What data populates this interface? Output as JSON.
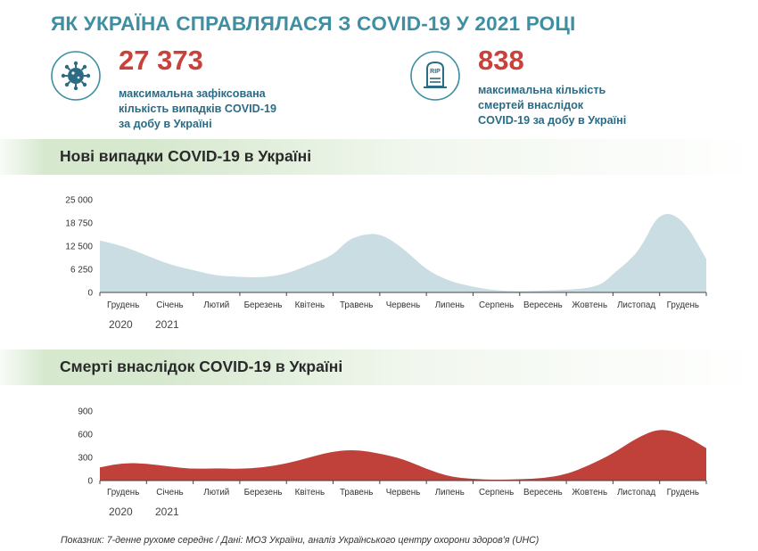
{
  "title": "ЯК УКРАЇНА СПРАВЛЯЛАСЯ З COVID-19 У 2021 РОЦІ",
  "stats": {
    "cases": {
      "icon": "virus-icon",
      "value": "27 373",
      "desc": [
        "максимальна зафіксована",
        "кількість випадків COVID-19",
        "за добу в Україні"
      ]
    },
    "deaths": {
      "icon": "tombstone-rip-icon",
      "icon_text": "RIP",
      "value": "838",
      "desc": [
        "максимальна кількість",
        "смертей внаслідок",
        "COVID-19 за добу в Україні"
      ]
    }
  },
  "colors": {
    "title": "#3f8fa3",
    "stat_number": "#c8413a",
    "stat_text": "#2c6b84",
    "cases_area": "#c9dde2",
    "deaths_area": "#c0403a",
    "band": "#d6e8ce"
  },
  "year_labels": [
    "2020",
    "2021"
  ],
  "footer": "Показник: 7-денне рухоме середнє / Дані: МОЗ України, аналіз Українського центру охорони здоров'я (UHC)",
  "chart_data": [
    {
      "type": "area",
      "title": "Нові випадки COVID-19 в Україні",
      "yticks": [
        "0",
        "6 250",
        "12 500",
        "18 750",
        "25 000"
      ],
      "ylim": [
        0,
        25000
      ],
      "xticks": [
        "Грудень",
        "Січень",
        "Лютий",
        "Березень",
        "Квітень",
        "Травень",
        "Червень",
        "Липень",
        "Серпень",
        "Вересень",
        "Жовтень",
        "Листопад",
        "Грудень"
      ],
      "x_month": [
        0,
        0.5,
        1,
        1.5,
        2,
        2.5,
        3,
        3.5,
        4,
        4.5,
        5,
        5.3,
        5.6,
        6,
        6.5,
        7,
        7.5,
        8,
        8.5,
        9,
        9.5,
        10,
        10.5,
        10.8,
        11,
        11.3,
        11.6,
        12,
        12.5,
        13
      ],
      "values": [
        14000,
        12500,
        10000,
        7500,
        6000,
        4500,
        4200,
        4000,
        5000,
        7500,
        10000,
        14000,
        15500,
        16000,
        12000,
        6000,
        3000,
        1500,
        500,
        300,
        500,
        700,
        1200,
        2500,
        5000,
        8000,
        12000,
        22000,
        20000,
        9000
      ],
      "color": "#c9dde2"
    },
    {
      "type": "area",
      "title": "Смерті внаслідок COVID-19 в Україні",
      "yticks": [
        "0",
        "300",
        "600",
        "900"
      ],
      "ylim": [
        0,
        900
      ],
      "xticks": [
        "Грудень",
        "Січень",
        "Лютий",
        "Березень",
        "Квітень",
        "Травень",
        "Червень",
        "Липень",
        "Серпень",
        "Вересень",
        "Жовтень",
        "Листопад",
        "Грудень"
      ],
      "x_month": [
        0,
        0.5,
        1,
        1.5,
        2,
        2.5,
        3,
        3.5,
        4,
        4.5,
        5,
        5.5,
        6,
        6.5,
        7,
        7.5,
        8,
        8.5,
        9,
        9.5,
        10,
        10.5,
        11,
        11.5,
        12,
        12.5,
        13
      ],
      "values": [
        170,
        230,
        220,
        180,
        150,
        160,
        150,
        170,
        220,
        300,
        380,
        400,
        350,
        280,
        150,
        50,
        20,
        10,
        15,
        30,
        80,
        200,
        350,
        550,
        680,
        600,
        420
      ],
      "color": "#c0403a"
    }
  ]
}
